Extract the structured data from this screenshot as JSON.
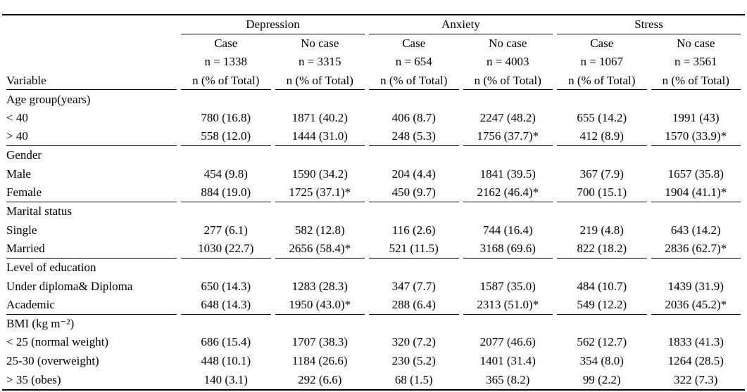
{
  "colors": {
    "background": "#ffffff",
    "text": "#000000",
    "rule": "#000000"
  },
  "table": {
    "variable_header": "Variable",
    "measure_label": "n (% of Total)",
    "groups": [
      {
        "label": "Depression",
        "columns": [
          {
            "label": "Case",
            "n": "n = 1338"
          },
          {
            "label": "No case",
            "n": "n = 3315"
          }
        ]
      },
      {
        "label": "Anxiety",
        "columns": [
          {
            "label": "Case",
            "n": "n = 654"
          },
          {
            "label": "No case",
            "n": "n = 4003"
          }
        ]
      },
      {
        "label": "Stress",
        "columns": [
          {
            "label": "Case",
            "n": "n = 1067"
          },
          {
            "label": "No case",
            "n": "n = 3561"
          }
        ]
      }
    ],
    "sections": [
      {
        "label": "Age group(years)",
        "rows": [
          {
            "label": "< 40",
            "values": [
              "780 (16.8)",
              "1871 (40.2)",
              "406 (8.7)",
              "2247 (48.2)",
              "655 (14.2)",
              "1991 (43)"
            ]
          },
          {
            "label": "> 40",
            "values": [
              "558 (12.0)",
              "1444 (31.0)",
              "248 (5.3)",
              "1756 (37.7)*",
              "412 (8.9)",
              "1570 (33.9)*"
            ]
          }
        ]
      },
      {
        "label": "Gender",
        "rows": [
          {
            "label": "Male",
            "values": [
              "454 (9.8)",
              "1590 (34.2)",
              "204 (4.4)",
              "1841 (39.5)",
              "367 (7.9)",
              "1657 (35.8)"
            ]
          },
          {
            "label": "Female",
            "values": [
              "884 (19.0)",
              "1725 (37.1)*",
              "450 (9.7)",
              "2162 (46.4)*",
              "700 (15.1)",
              "1904 (41.1)*"
            ]
          }
        ]
      },
      {
        "label": "Marital status",
        "rows": [
          {
            "label": "Single",
            "values": [
              "277 (6.1)",
              "582 (12.8)",
              "116 (2.6)",
              "744 (16.4)",
              "219 (4.8)",
              "643 (14.2)"
            ]
          },
          {
            "label": "Married",
            "values": [
              "1030 (22.7)",
              "2656 (58.4)*",
              "521 (11.5)",
              "3168 (69.6)",
              "822 (18.2)",
              "2836 (62.7)*"
            ]
          }
        ]
      },
      {
        "label": "Level of education",
        "rows": [
          {
            "label": "Under diploma& Diploma",
            "values": [
              "650 (14.3)",
              "1283 (28.3)",
              "347 (7.7)",
              "1587 (35.0)",
              "484 (10.7)",
              "1439 (31.9)"
            ]
          },
          {
            "label": "Academic",
            "values": [
              "648 (14.3)",
              "1950 (43.0)*",
              "288 (6.4)",
              "2313 (51.0)*",
              "549 (12.2)",
              "2036 (45.2)*"
            ]
          }
        ]
      },
      {
        "label": "BMI (kg m⁻²)",
        "rows": [
          {
            "label": "< 25 (normal weight)",
            "values": [
              "686 (15.4)",
              "1707 (38.3)",
              "320 (7.2)",
              "2077 (46.6)",
              "562 (12.7)",
              "1833 (41.3)"
            ]
          },
          {
            "label": "25-30 (overweight)",
            "values": [
              "448 (10.1)",
              "1184 (26.6)",
              "230 (5.2)",
              "1401 (31.4)",
              "354 (8.0)",
              "1264 (28.5)"
            ]
          },
          {
            "label": "> 35 (obes)",
            "values": [
              "140 (3.1)",
              "292 (6.6)",
              "68 (1.5)",
              "365 (8.2)",
              "99 (2.2)",
              "322 (7.3)"
            ]
          }
        ]
      }
    ]
  }
}
